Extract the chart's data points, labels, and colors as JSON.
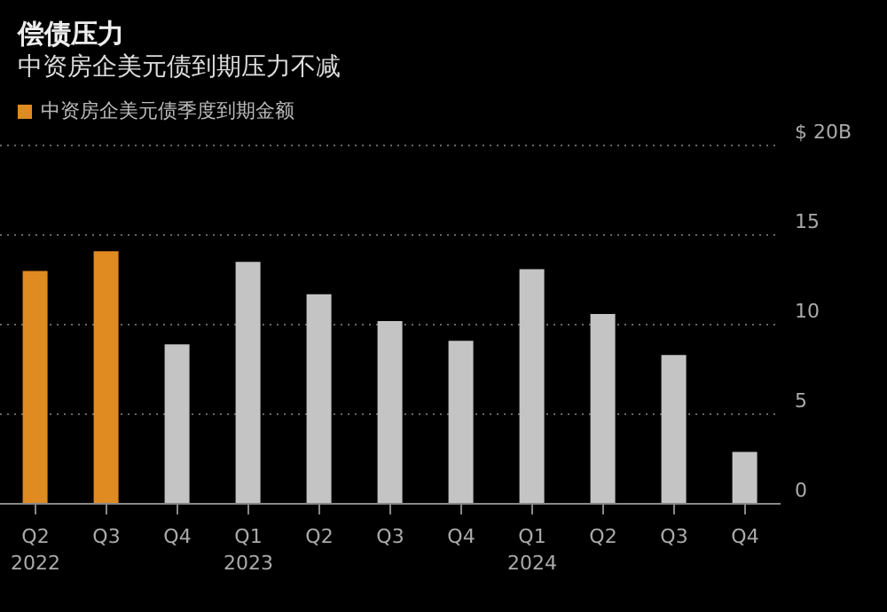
{
  "chart_data": {
    "type": "bar",
    "title": "偿债压力",
    "subtitle": "中资房企美元债到期压力不减",
    "categories": [
      "Q2\n2022",
      "Q3",
      "Q4",
      "Q1\n2023",
      "Q2",
      "Q3",
      "Q4",
      "Q1\n2024",
      "Q2",
      "Q3",
      "Q4"
    ],
    "series": [
      {
        "name": "中资房企美元债季度到期金额",
        "color": "#e08a22",
        "colors": [
          "#e08a22",
          "#e08a22",
          "#c4c4c4",
          "#c4c4c4",
          "#c4c4c4",
          "#c4c4c4",
          "#c4c4c4",
          "#c4c4c4",
          "#c4c4c4",
          "#c4c4c4",
          "#c4c4c4"
        ],
        "values": [
          13.0,
          14.1,
          8.9,
          13.5,
          11.7,
          10.2,
          9.1,
          13.1,
          10.6,
          8.3,
          2.9
        ]
      }
    ],
    "ylim": [
      0,
      20
    ],
    "yticks": [
      0,
      5,
      10,
      15,
      {
        "value": 20,
        "label": "$ 20B"
      }
    ],
    "grid": "y",
    "legend": "top left"
  }
}
